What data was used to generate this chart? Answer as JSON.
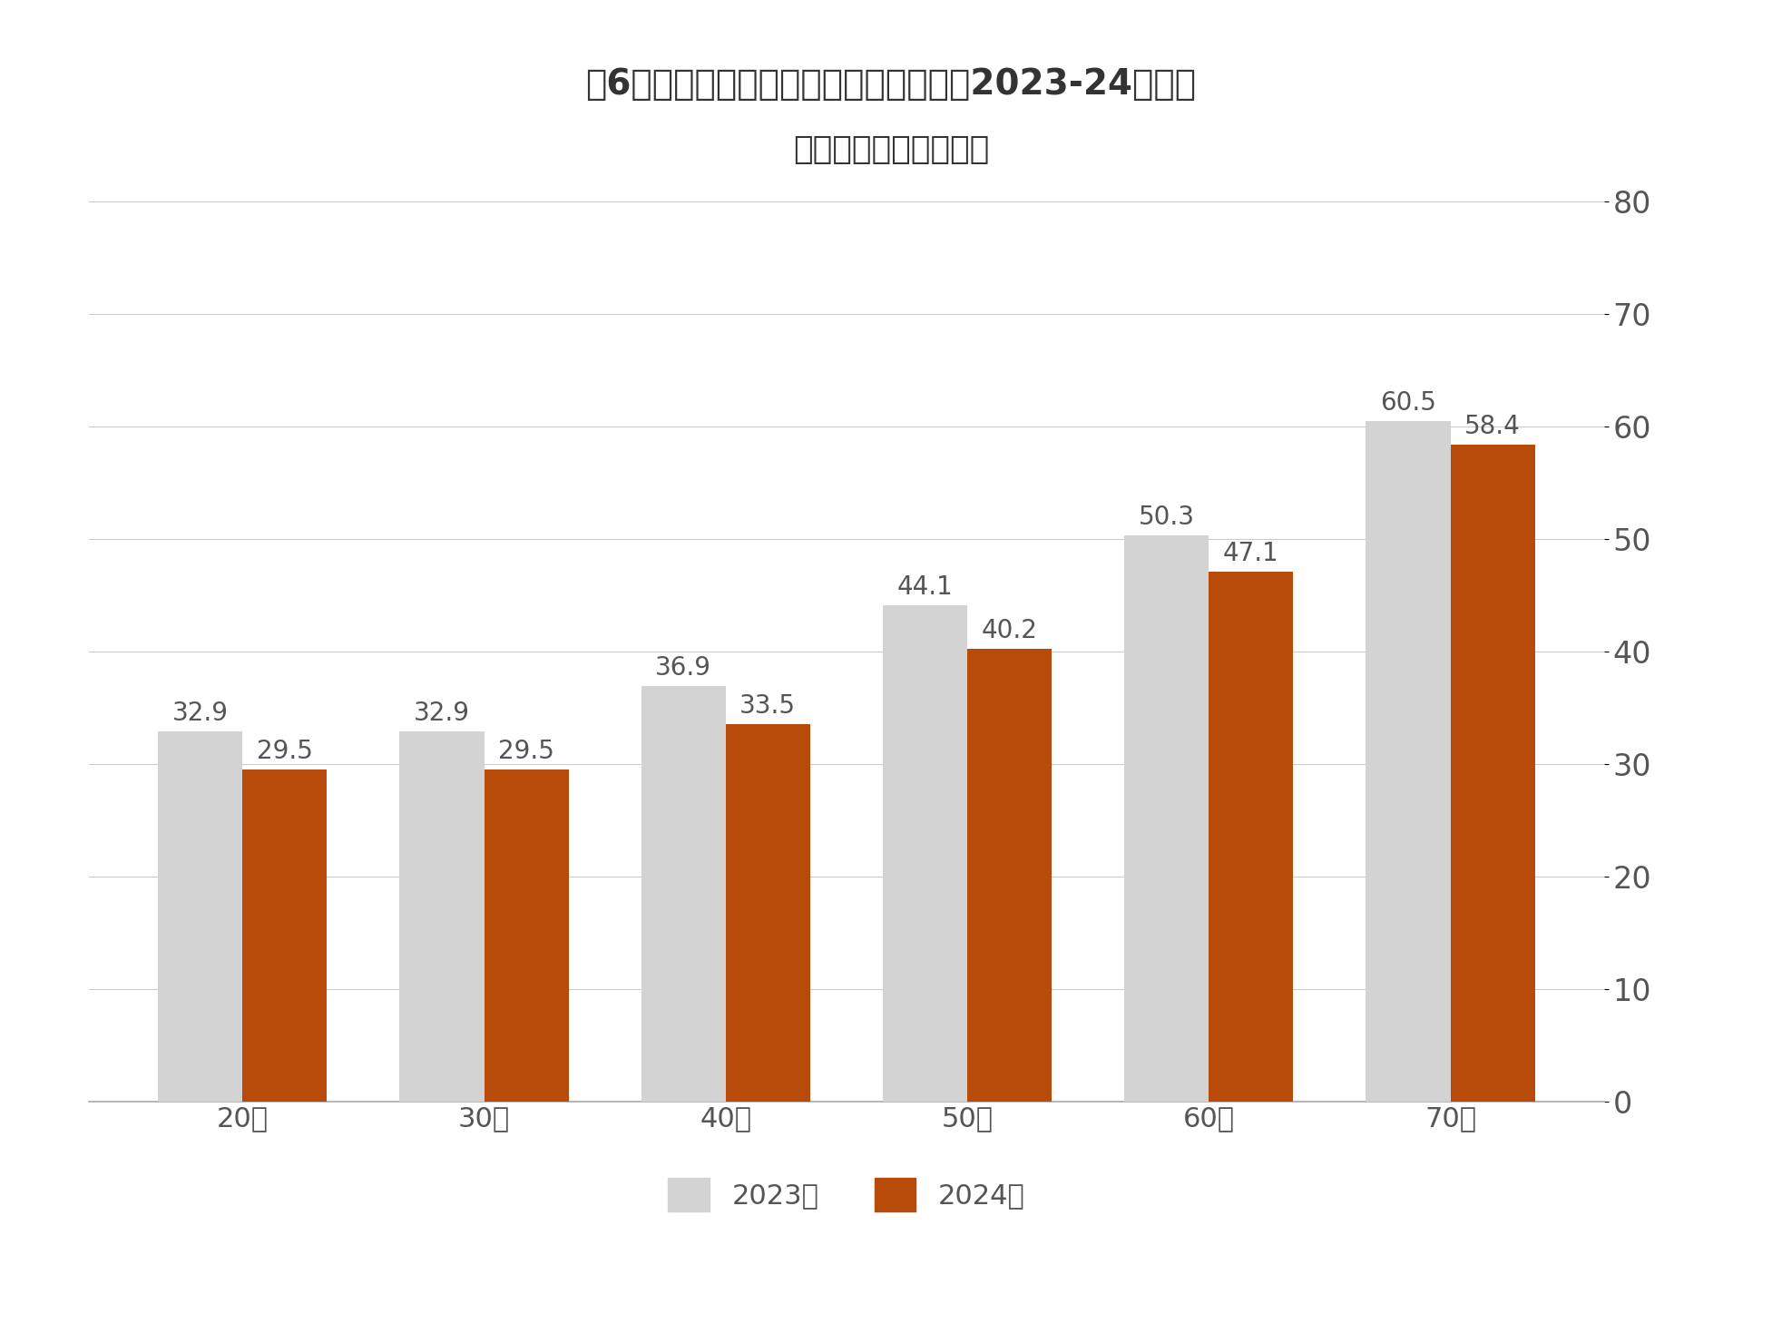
{
  "title_line1": "図6：スポーツファンの割合　年代別、2023-24年比較",
  "title_line2": "【女性】（単位：％）",
  "categories": [
    "20代",
    "30代",
    "40代",
    "50代",
    "60代",
    "70代"
  ],
  "values_2023": [
    32.9,
    32.9,
    36.9,
    44.1,
    50.3,
    60.5
  ],
  "values_2024": [
    29.5,
    29.5,
    33.5,
    40.2,
    47.1,
    58.4
  ],
  "color_2023": "#d3d3d3",
  "color_2024": "#b84a0a",
  "ylim": [
    0,
    80
  ],
  "yticks": [
    0,
    10,
    20,
    30,
    40,
    50,
    60,
    70,
    80
  ],
  "legend_2023": "2023年",
  "legend_2024": "2024年",
  "background_color": "#ffffff",
  "bar_label_fontsize": 20,
  "axis_label_fontsize": 22,
  "title_fontsize": 28,
  "legend_fontsize": 22,
  "tick_fontsize": 24,
  "text_color": "#555555"
}
